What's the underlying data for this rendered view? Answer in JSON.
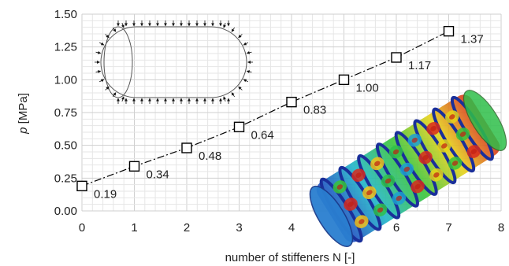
{
  "chart_data": {
    "type": "line",
    "title": "",
    "xlabel": "number of stiffeners N [-]",
    "ylabel_italic": "p",
    "ylabel_unit": " [MPa]",
    "xlim": [
      0,
      8
    ],
    "ylim": [
      0,
      1.5
    ],
    "x_ticks": [
      "0",
      "1",
      "2",
      "3",
      "4",
      "5",
      "6",
      "7",
      "8"
    ],
    "y_ticks": [
      "0.00",
      "0.25",
      "0.50",
      "0.75",
      "1.00",
      "1.25",
      "1.50"
    ],
    "grid": true,
    "series": [
      {
        "x": [
          0,
          1,
          2,
          3,
          4,
          5,
          6,
          7
        ],
        "values": [
          0.19,
          0.34,
          0.48,
          0.64,
          0.83,
          1.0,
          1.17,
          1.37
        ],
        "labels": [
          "0.19",
          "0.34",
          "0.48",
          "0.64",
          "0.83",
          "1.00",
          "1.17",
          "1.37"
        ],
        "marker": "open-square",
        "line_style": "dash-dot",
        "color": "#000000"
      }
    ],
    "insets": {
      "top_left": "cross-section-diagram-with-pressure-arrows",
      "bottom_right": "fe-buckling-mode-contour-plot-stiffened-cylinder"
    }
  }
}
